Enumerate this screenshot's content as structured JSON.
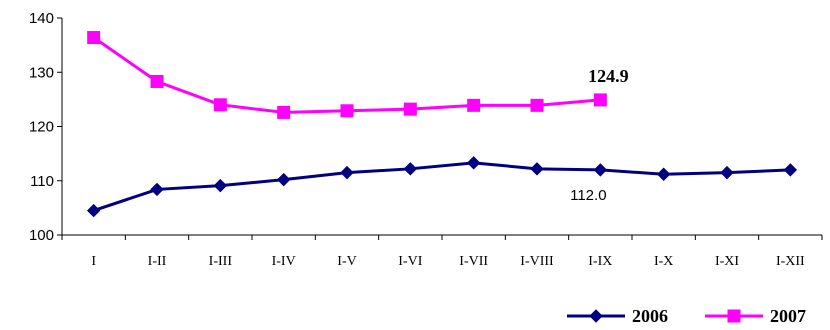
{
  "chart_data": {
    "type": "line",
    "categories": [
      "I",
      "I-II",
      "I-III",
      "I-IV",
      "I-V",
      "I-VI",
      "I-VII",
      "I-VIII",
      "I-IX",
      "I-X",
      "I-XI",
      "I-XII"
    ],
    "series": [
      {
        "name": "2006",
        "values": [
          104.5,
          108.4,
          109.1,
          110.2,
          111.5,
          112.2,
          113.3,
          112.2,
          112.0,
          111.2,
          111.5,
          112.0
        ],
        "color": "#000080",
        "marker": "diamond"
      },
      {
        "name": "2007",
        "values": [
          136.4,
          128.3,
          124.0,
          122.6,
          122.9,
          123.2,
          123.9,
          123.9,
          124.9,
          null,
          null,
          null
        ],
        "color": "#ff00ff",
        "marker": "square"
      }
    ],
    "ylim": [
      100,
      140
    ],
    "yticks": [
      "100",
      "110",
      "120",
      "130",
      "140"
    ],
    "annotations": [
      {
        "series": "2007",
        "index": 8,
        "text": "124.9",
        "bold": true
      },
      {
        "series": "2006",
        "index": 8,
        "text": "112.0",
        "bold": false
      }
    ],
    "grid": false,
    "legend": "bottom-right"
  }
}
